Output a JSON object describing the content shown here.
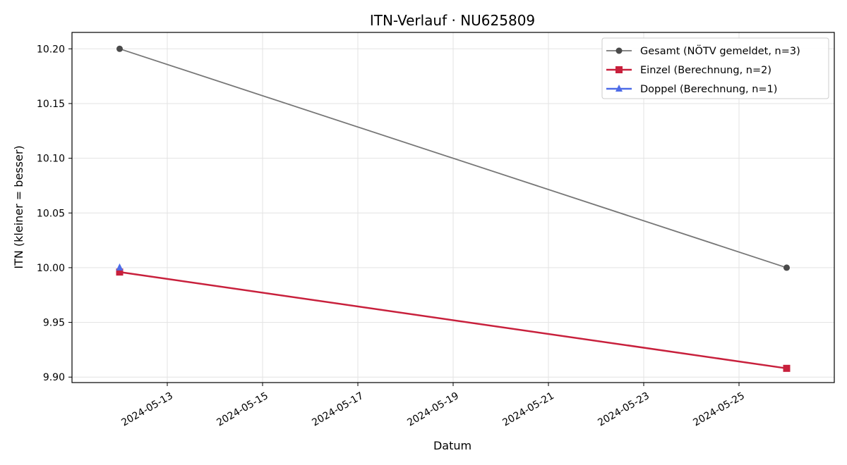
{
  "chart_data": {
    "type": "line",
    "title": "ITN-Verlauf · NU625809",
    "xlabel": "Datum",
    "ylabel": "ITN  (kleiner = besser)",
    "x_axis_type": "date",
    "xlim": [
      "2024-05-11",
      "2024-05-27"
    ],
    "ylim": [
      9.895,
      10.215
    ],
    "x_ticks": [
      "2024-05-13",
      "2024-05-15",
      "2024-05-17",
      "2024-05-19",
      "2024-05-21",
      "2024-05-23",
      "2024-05-25"
    ],
    "y_ticks": [
      "9.90",
      "9.95",
      "10.00",
      "10.05",
      "10.10",
      "10.15",
      "10.20"
    ],
    "grid": true,
    "legend_position": "top-right",
    "series": [
      {
        "name": "Gesamt (NÖTV gemeldet, n=3)",
        "color": "#777777",
        "marker_color": "#4a4a4a",
        "marker": "circle",
        "points": [
          {
            "x": "2024-05-12",
            "y": 10.2
          },
          {
            "x": "2024-05-26",
            "y": 10.0
          }
        ]
      },
      {
        "name": "Einzel (Berechnung, n=2)",
        "color": "#c8203c",
        "marker_color": "#c8203c",
        "marker": "square",
        "points": [
          {
            "x": "2024-05-12",
            "y": 9.996
          },
          {
            "x": "2024-05-26",
            "y": 9.908
          }
        ]
      },
      {
        "name": "Doppel (Berechnung, n=1)",
        "color": "#4d6be8",
        "marker_color": "#4d6be8",
        "marker": "triangle",
        "points": [
          {
            "x": "2024-05-12",
            "y": 10.0
          }
        ]
      }
    ]
  }
}
